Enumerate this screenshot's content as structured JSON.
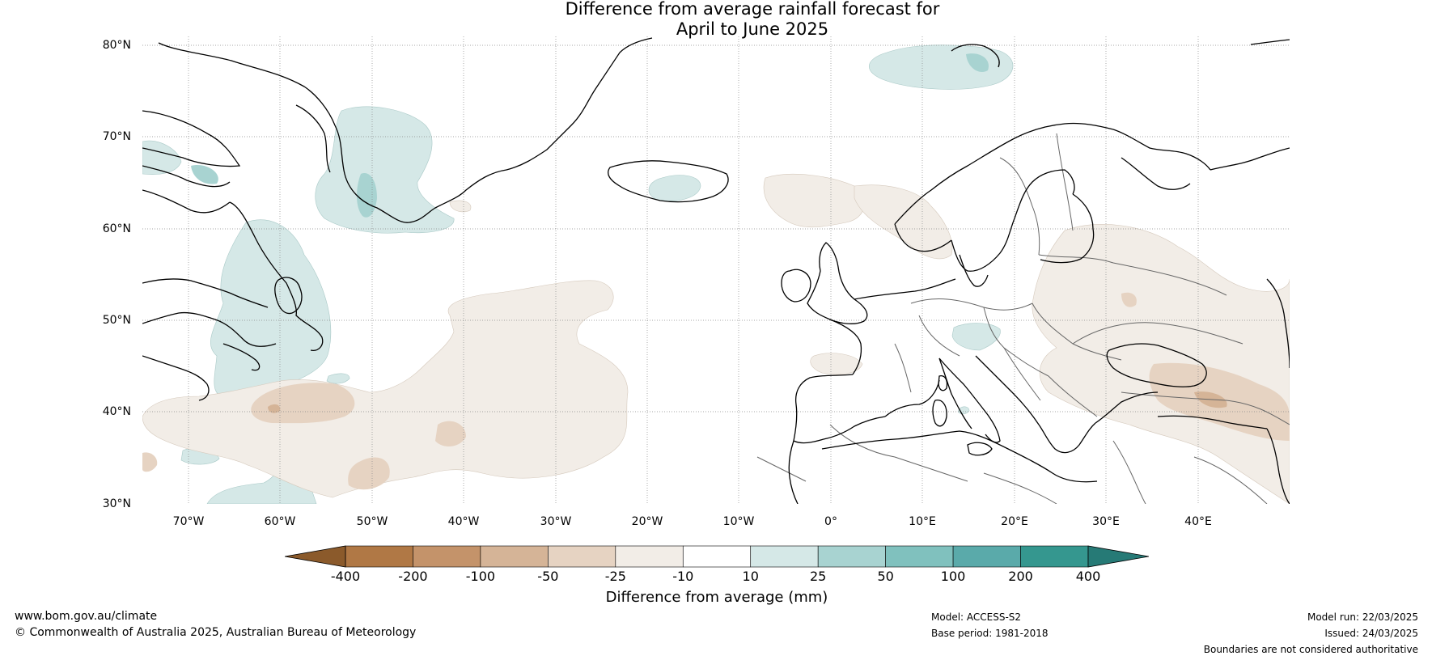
{
  "title": {
    "line1": "Difference from average rainfall forecast for",
    "line2": "April to June 2025"
  },
  "map": {
    "projection": "equirectangular",
    "lon_range": [
      -75,
      50
    ],
    "lat_range": [
      30,
      81
    ],
    "gridlines": "dotted",
    "lat_labels": [
      "80°N",
      "70°N",
      "60°N",
      "50°N",
      "40°N",
      "30°N"
    ],
    "lon_labels": [
      "70°W",
      "60°W",
      "50°W",
      "40°W",
      "30°W",
      "20°W",
      "10°W",
      "0°",
      "10°E",
      "20°E",
      "30°E",
      "40°E"
    ],
    "colors": {
      "wet_10_25": "#d5e8e7",
      "wet_25_50": "#a8d3d1",
      "dry_10_25": "#f2ede7",
      "dry_25_50": "#e6d3c2",
      "dry_50_100": "#d5b497",
      "coast": "#000000",
      "borders": "#666666"
    }
  },
  "legend": {
    "ticks": [
      "-400",
      "-200",
      "-100",
      "-50",
      "-25",
      "-10",
      "10",
      "25",
      "50",
      "100",
      "200",
      "400"
    ],
    "colors": [
      "#8b5a2b",
      "#b07845",
      "#c4936a",
      "#d5b497",
      "#e6d3c2",
      "#f2ede7",
      "#ffffff",
      "#d5e8e7",
      "#a8d3d1",
      "#80c1be",
      "#5aaaaa",
      "#35978f",
      "#267a76"
    ],
    "label": "Difference from average (mm)"
  },
  "footer": {
    "website": "www.bom.gov.au/climate",
    "copyright": "© Commonwealth of Australia 2025, Australian Bureau of Meteorology",
    "model": "Model: ACCESS-S2",
    "base_period": "Base period: 1981-2018",
    "model_run": "Model run: 22/03/2025",
    "issued": "Issued: 24/03/2025",
    "disclaimer": "Boundaries are not considered authoritative"
  }
}
